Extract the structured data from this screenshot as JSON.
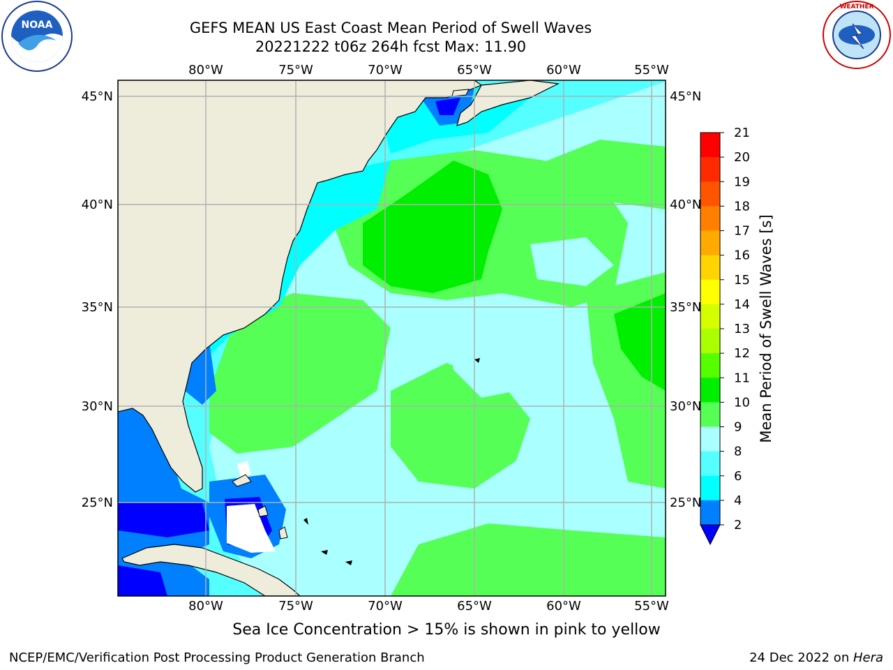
{
  "title_line1": "GEFS MEAN US East Coast Mean Period of Swell Waves",
  "title_line2": "20221222 t06z 264h fcst   Max: 11.90",
  "longitude_labels": [
    "80°W",
    "75°W",
    "70°W",
    "65°W",
    "60°W",
    "55°W"
  ],
  "latitude_labels": [
    "45°N",
    "40°N",
    "35°N",
    "30°N",
    "25°N"
  ],
  "colorbar": {
    "label": "Mean Period of Swell Waves [s]",
    "ticks": [
      "21",
      "20",
      "19",
      "18",
      "17",
      "16",
      "15",
      "14",
      "13",
      "12",
      "11",
      "10",
      "9",
      "8",
      "6",
      "4",
      "2"
    ],
    "colors": [
      "#ff0000",
      "#ff2a00",
      "#ff5500",
      "#ff7f00",
      "#ffaa00",
      "#ffd400",
      "#ffff00",
      "#d4ff00",
      "#aaff00",
      "#55ff00",
      "#00ee00",
      "#55ff55",
      "#aaffff",
      "#55ffff",
      "#00ffff",
      "#0080ff",
      "#0000ff"
    ]
  },
  "land_color": "#eeeddc",
  "note": "Sea Ice Concentration > 15% is shown in pink to yellow",
  "credit": "NCEP/EMC/Verification Post Processing Product Generation Branch",
  "date": "24 Dec 2022 on ",
  "machine": "Hera",
  "logos": [
    "noaa-logo",
    "nws-logo"
  ]
}
